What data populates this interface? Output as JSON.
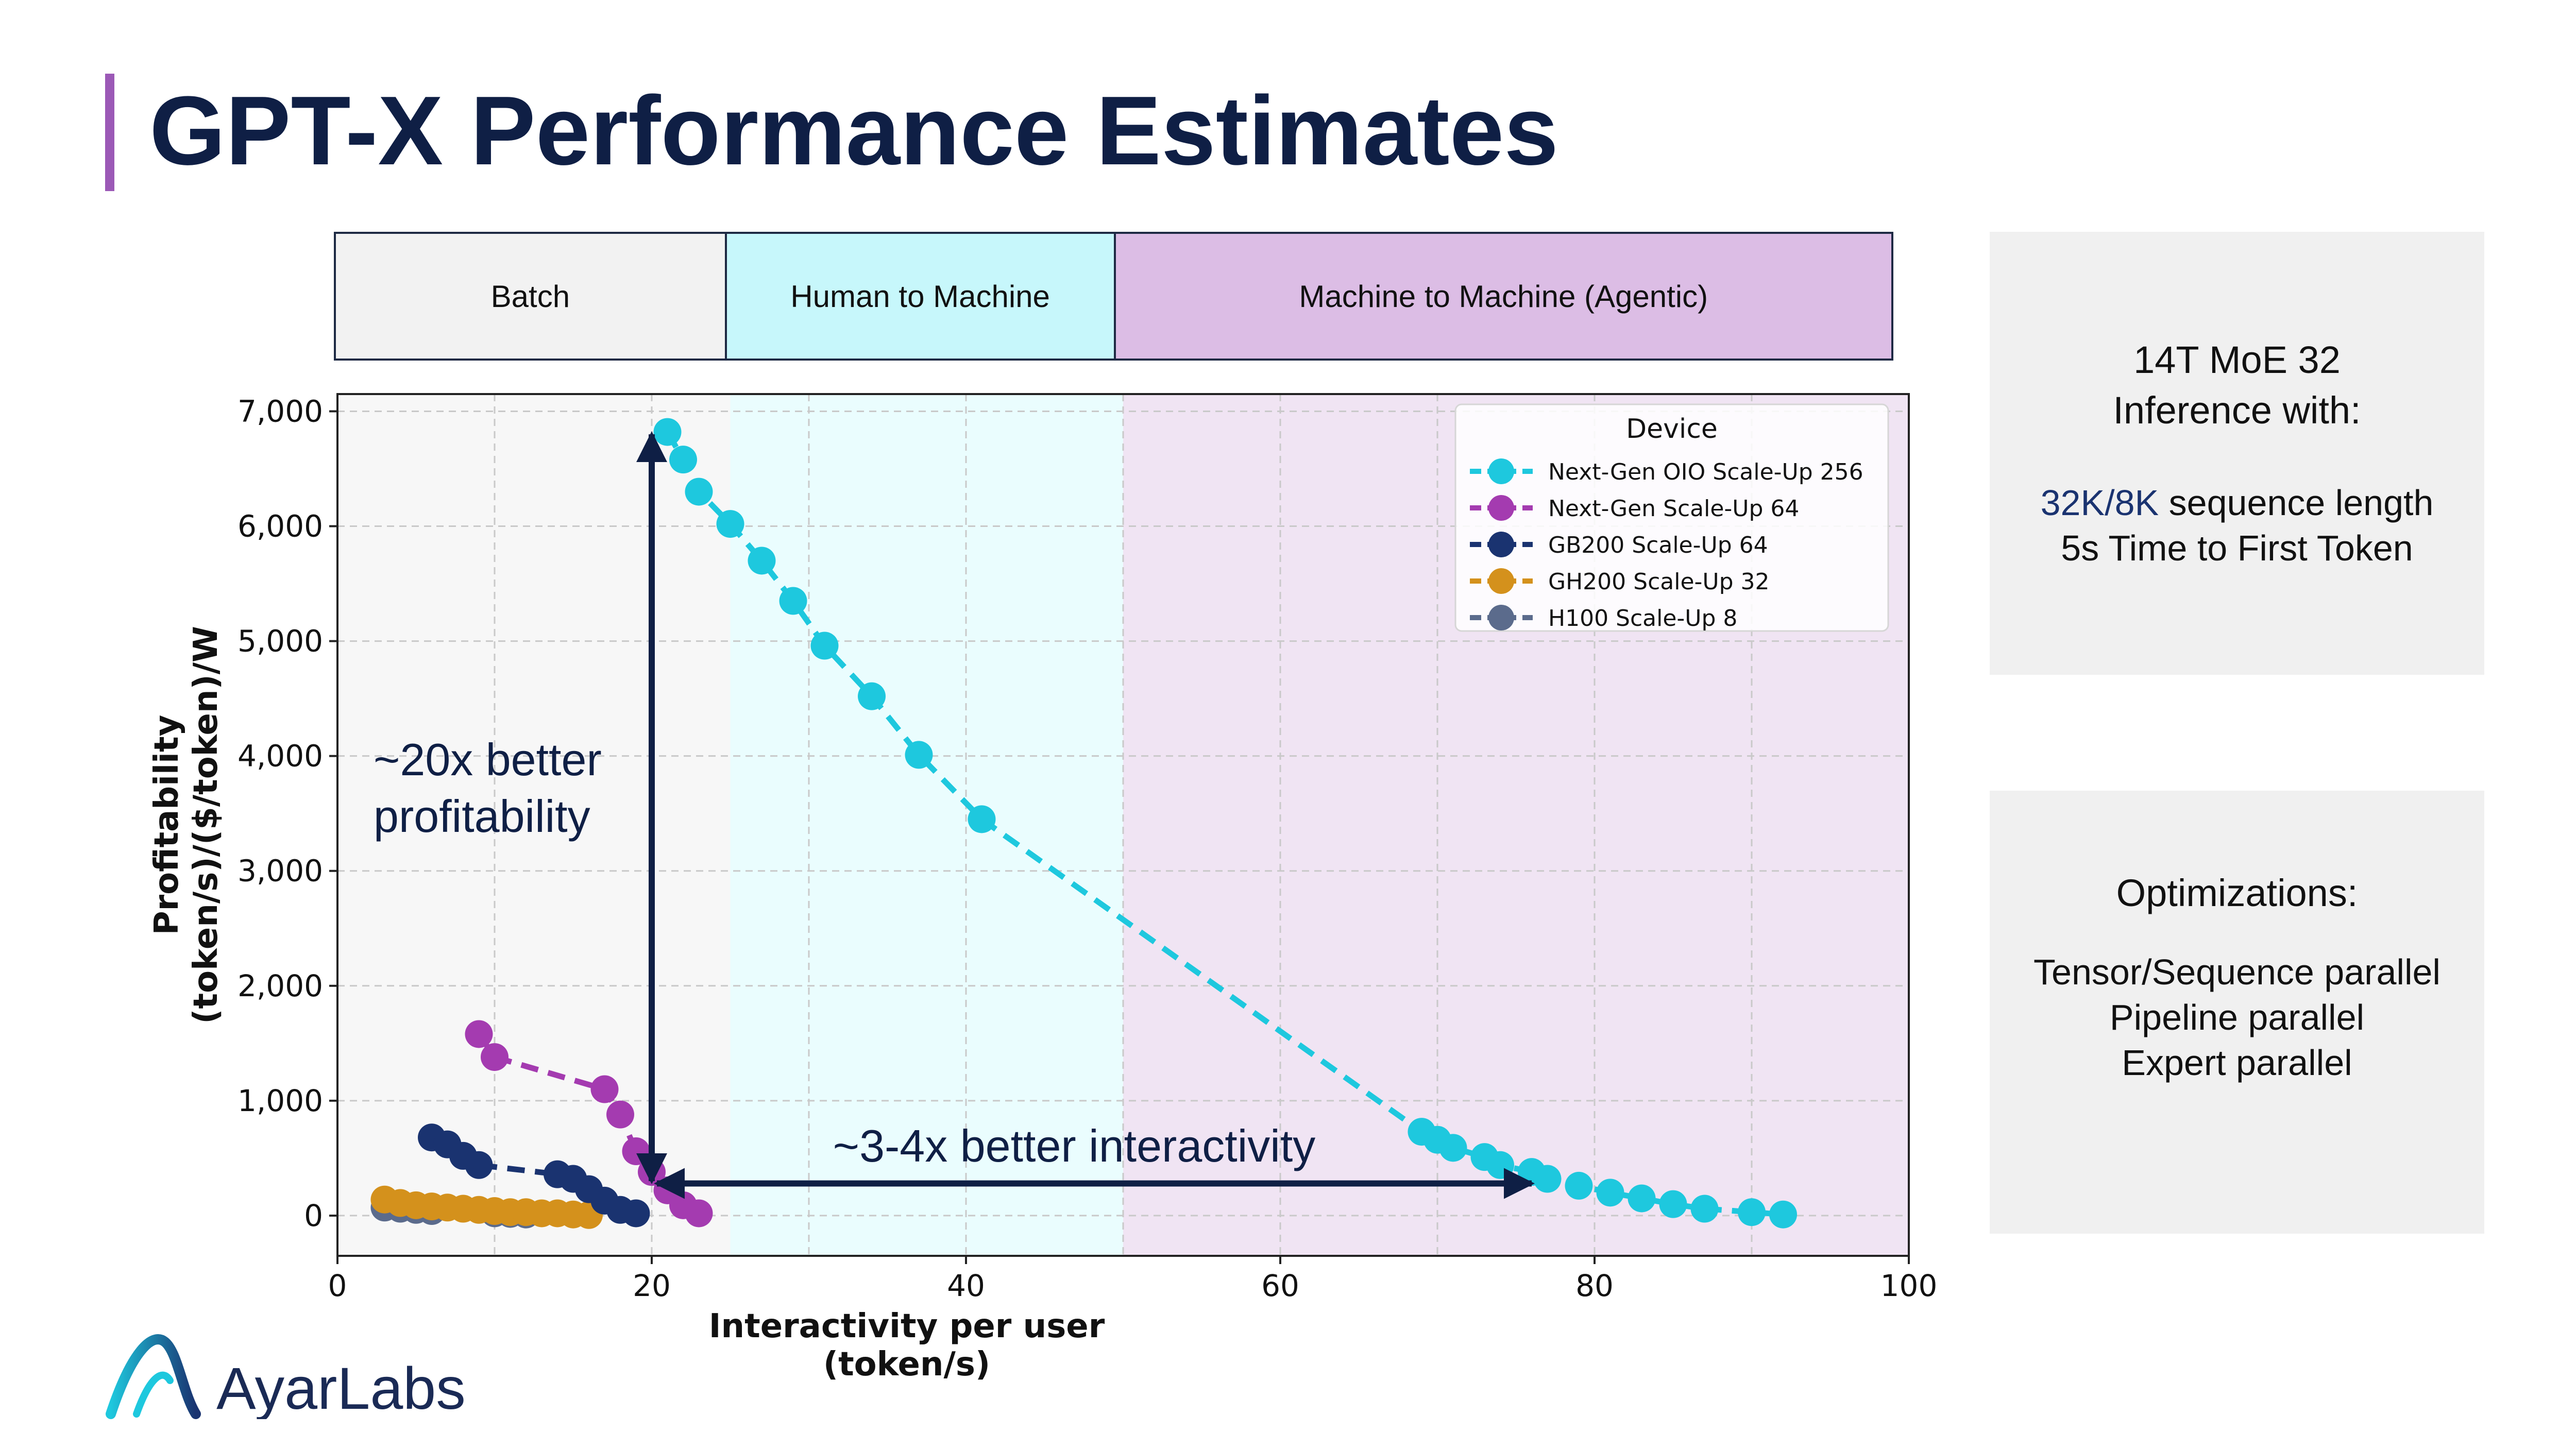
{
  "title": "GPT-X Performance Estimates",
  "colors": {
    "title": "#0f1f45",
    "accent_bar": "#9b59b6",
    "batch_region": "#f2f2f2",
    "human_region": "#c7f7fb",
    "agentic_region": "#dcbde5",
    "annotation": "#0f1f45"
  },
  "regions": [
    {
      "label": "Batch",
      "x_start": 0,
      "x_end": 25
    },
    {
      "label": "Human to Machine",
      "x_start": 25,
      "x_end": 50
    },
    {
      "label": "Machine to Machine (Agentic)",
      "x_start": 50,
      "x_end": 100
    }
  ],
  "side_panel": {
    "box1": {
      "line1": "14T MoE 32",
      "line2": "Inference with:",
      "line3_highlight": "32K/8K",
      "line3_rest": " sequence length",
      "line4": "5s Time to First Token"
    },
    "box2": {
      "heading": "Optimizations:",
      "items": [
        "Tensor/Sequence parallel",
        "Pipeline parallel",
        "Expert parallel"
      ]
    }
  },
  "chart_data": {
    "type": "line",
    "xlabel_line1": "Interactivity per user",
    "xlabel_line2": "(token/s)",
    "ylabel_line1": "Profitability",
    "ylabel_line2": "(token/s)/($/token)/W",
    "xlim": [
      0,
      100
    ],
    "ylim": [
      -350,
      7150
    ],
    "xticks": [
      0,
      20,
      40,
      60,
      80,
      100
    ],
    "xtick_labels": [
      "0",
      "20",
      "40",
      "60",
      "80",
      "100"
    ],
    "yticks": [
      0,
      1000,
      2000,
      3000,
      4000,
      5000,
      6000,
      7000
    ],
    "ytick_labels": [
      "0",
      "1,000",
      "2,000",
      "3,000",
      "4,000",
      "5,000",
      "6,000",
      "7,000"
    ],
    "grid": true,
    "legend_title": "Device",
    "legend_position": "top-right",
    "series": [
      {
        "name": "Next-Gen OIO Scale-Up 256",
        "color": "#1ec8de",
        "x": [
          21,
          22,
          23,
          25,
          27,
          29,
          31,
          34,
          37,
          41,
          69,
          70,
          71,
          73,
          74,
          76,
          77,
          79,
          81,
          83,
          85,
          87,
          90,
          92
        ],
        "y": [
          6820,
          6580,
          6300,
          6020,
          5700,
          5350,
          4960,
          4520,
          4010,
          3450,
          730,
          660,
          590,
          510,
          440,
          380,
          320,
          260,
          200,
          150,
          100,
          60,
          30,
          10
        ]
      },
      {
        "name": "Next-Gen Scale-Up 64",
        "color": "#a43bb0",
        "x": [
          9,
          10,
          17,
          18,
          19,
          20,
          21,
          22,
          23
        ],
        "y": [
          1580,
          1380,
          1100,
          880,
          560,
          380,
          220,
          90,
          20
        ]
      },
      {
        "name": "GB200 Scale-Up 64",
        "color": "#1a3370",
        "x": [
          6,
          7,
          8,
          9,
          14,
          15,
          16,
          17,
          18,
          19
        ],
        "y": [
          680,
          620,
          520,
          440,
          360,
          320,
          230,
          130,
          50,
          20
        ]
      },
      {
        "name": "GH200 Scale-Up 32",
        "color": "#d4911c",
        "x": [
          3,
          4,
          5,
          6,
          7,
          8,
          9,
          10,
          11,
          12,
          13,
          14,
          15,
          16
        ],
        "y": [
          140,
          110,
          90,
          80,
          70,
          60,
          50,
          40,
          30,
          30,
          20,
          20,
          10,
          5
        ]
      },
      {
        "name": "H100 Scale-Up 8",
        "color": "#5b6b8c",
        "x": [
          3,
          4,
          5,
          6,
          10,
          11,
          12
        ],
        "y": [
          70,
          60,
          50,
          40,
          20,
          15,
          10
        ]
      }
    ],
    "annotations": {
      "profitability_line1": "~20x better",
      "profitability_line2": "profitability",
      "interactivity": "~3-4x better interactivity",
      "vertical_arrow": {
        "x": 20,
        "y_from": 300,
        "y_to": 6800
      },
      "horizontal_arrow": {
        "y": 280,
        "x_from": 20,
        "x_to": 76
      }
    }
  },
  "logo": {
    "text": "AyarLabs"
  }
}
